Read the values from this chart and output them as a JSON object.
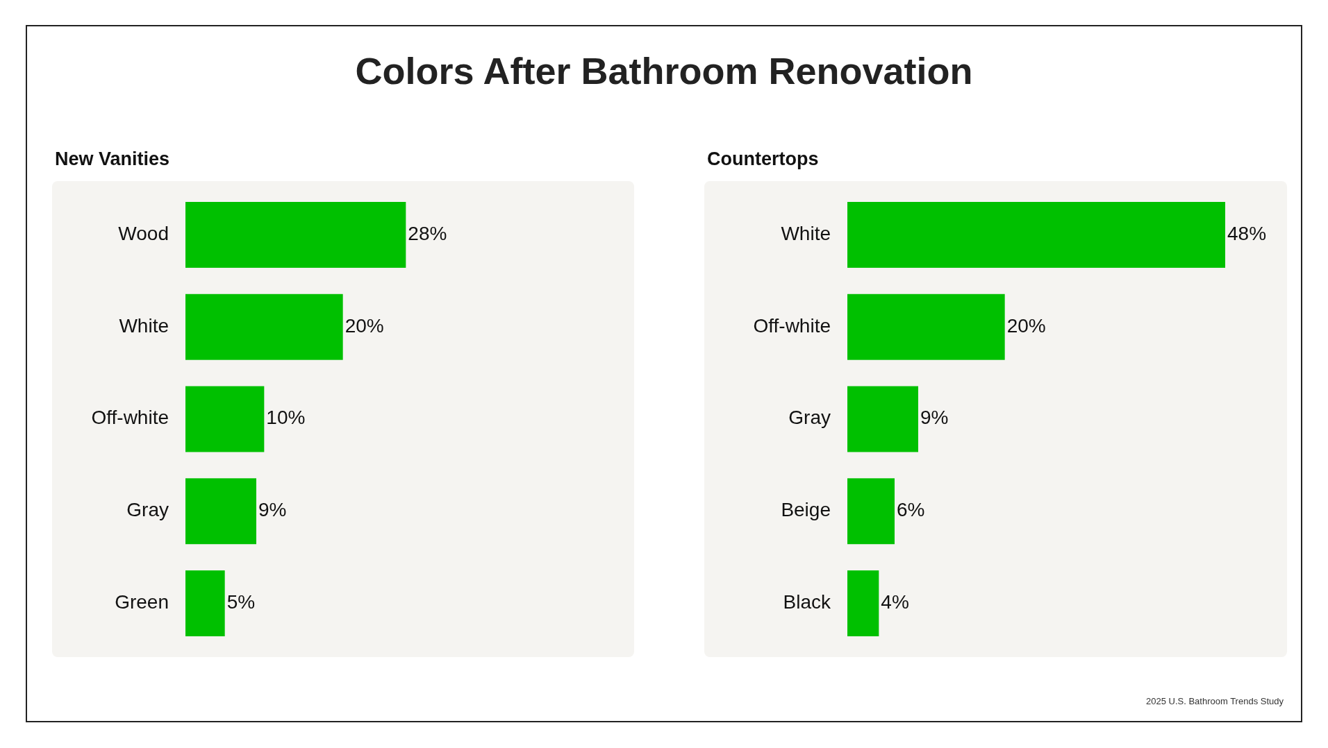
{
  "chart_data": [
    {
      "type": "bar",
      "orientation": "horizontal",
      "title": "Colors After Bathroom Renovation",
      "subtitle": "New Vanities",
      "categories": [
        "Wood",
        "White",
        "Off-white",
        "Gray",
        "Green"
      ],
      "values": [
        28,
        20,
        10,
        9,
        5
      ],
      "color": "#00c000",
      "value_labels": [
        "28%",
        "20%",
        "10%",
        "9%",
        "5%"
      ]
    },
    {
      "type": "bar",
      "orientation": "horizontal",
      "subtitle": "Countertops",
      "categories": [
        "White",
        "Off-white",
        "Gray",
        "Beige",
        "Black"
      ],
      "values": [
        48,
        20,
        9,
        6,
        4
      ],
      "color": "#00c000",
      "value_labels": [
        "48%",
        "20%",
        "9%",
        "6%",
        "4%"
      ],
      "annotations": [
        "2025 U.S. Bathroom Trends Study"
      ]
    }
  ]
}
